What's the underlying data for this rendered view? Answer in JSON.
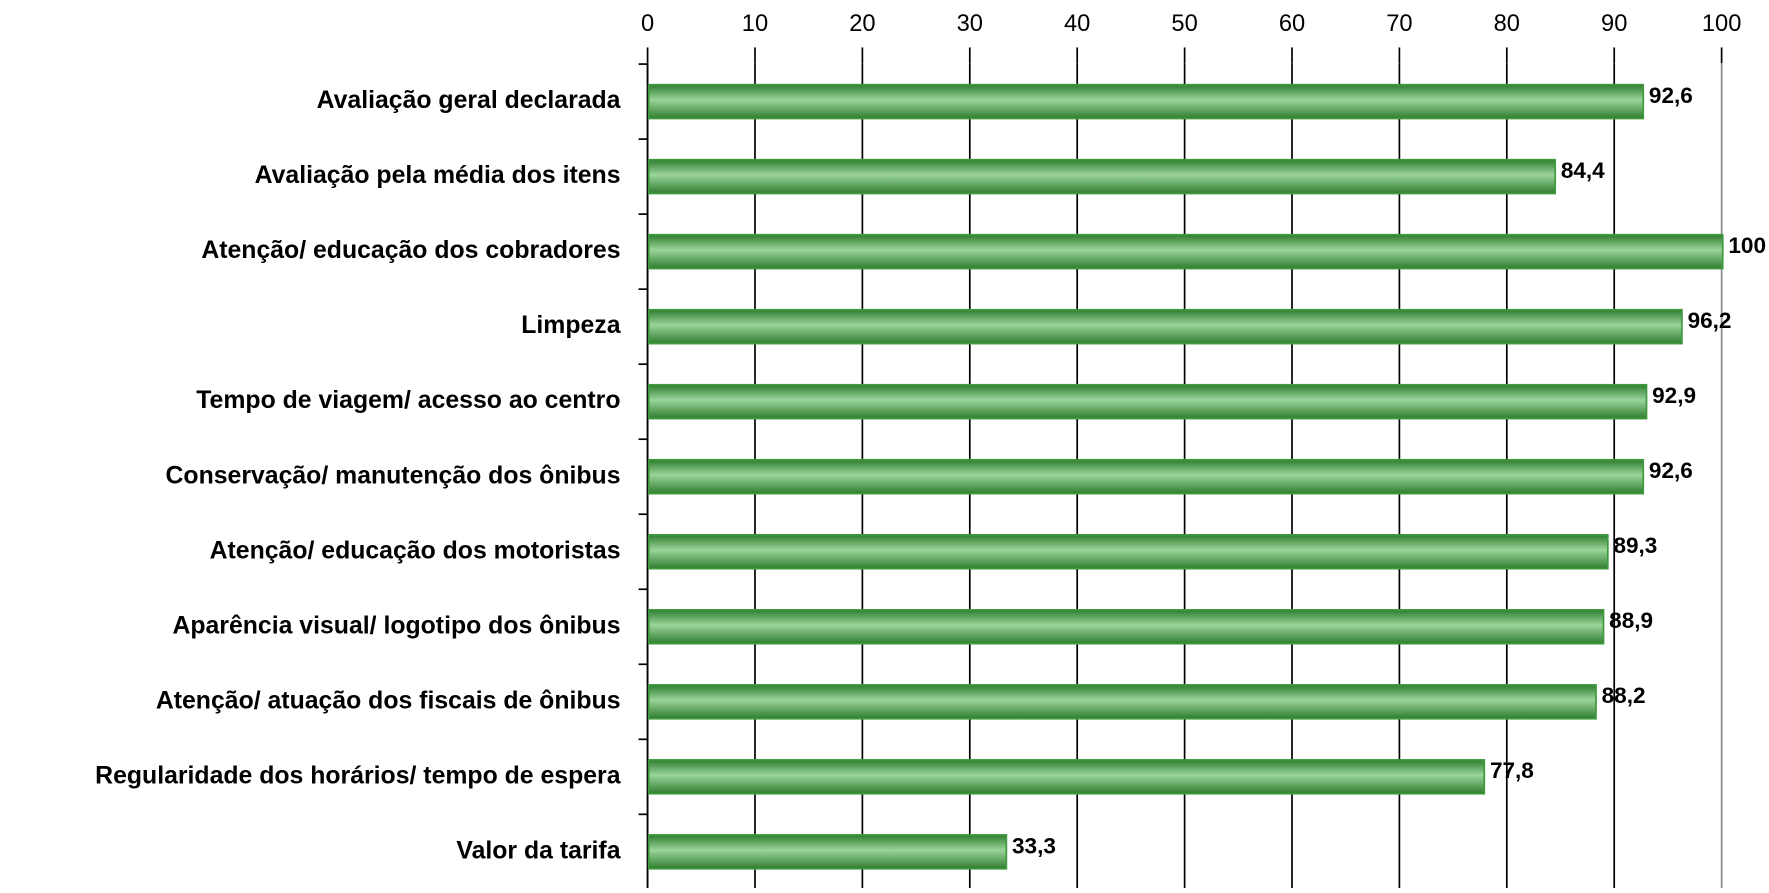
{
  "chart_data": {
    "type": "bar",
    "orientation": "horizontal",
    "categories": [
      "Avaliação geral declarada",
      "Avaliação pela média dos itens",
      "Atenção/ educação dos cobradores",
      "Limpeza",
      "Tempo de viagem/ acesso ao centro",
      "Conservação/ manutenção dos ônibus",
      "Atenção/ educação dos motoristas",
      "Aparência visual/ logotipo dos ônibus",
      "Atenção/ atuação dos fiscais de ônibus",
      "Regularidade dos horários/ tempo de espera",
      "Valor da tarifa"
    ],
    "values": [
      92.6,
      84.4,
      100,
      96.2,
      92.9,
      92.6,
      89.3,
      88.9,
      88.2,
      77.8,
      33.3
    ],
    "value_labels": [
      "92,6",
      "84,4",
      "100",
      "96,2",
      "92,9",
      "92,6",
      "89,3",
      "88,9",
      "88,2",
      "77,8",
      "33,3"
    ],
    "color": "#3f9a3f",
    "xlim": [
      0,
      100
    ],
    "xticks": [
      0,
      10,
      20,
      30,
      40,
      50,
      60,
      70,
      80,
      90,
      100
    ],
    "grid": true
  }
}
